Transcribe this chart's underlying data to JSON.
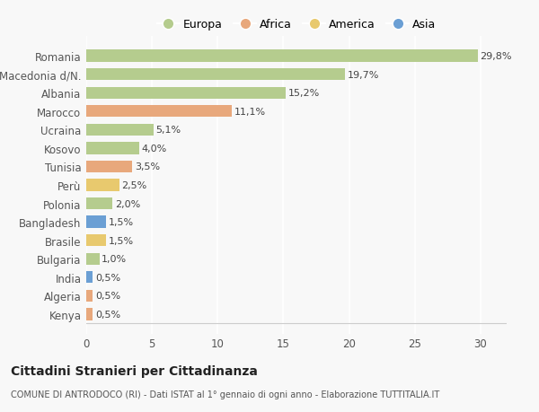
{
  "categories": [
    "Kenya",
    "Algeria",
    "India",
    "Bulgaria",
    "Brasile",
    "Bangladesh",
    "Polonia",
    "Perù",
    "Tunisia",
    "Kosovo",
    "Ucraina",
    "Marocco",
    "Albania",
    "Macedonia d/N.",
    "Romania"
  ],
  "values": [
    0.5,
    0.5,
    0.5,
    1.0,
    1.5,
    1.5,
    2.0,
    2.5,
    3.5,
    4.0,
    5.1,
    11.1,
    15.2,
    19.7,
    29.8
  ],
  "labels": [
    "0,5%",
    "0,5%",
    "0,5%",
    "1,0%",
    "1,5%",
    "1,5%",
    "2,0%",
    "2,5%",
    "3,5%",
    "4,0%",
    "5,1%",
    "11,1%",
    "15,2%",
    "19,7%",
    "29,8%"
  ],
  "colors": [
    "#e8a87c",
    "#e8a87c",
    "#6b9fd4",
    "#b5cc8e",
    "#e8c96e",
    "#6b9fd4",
    "#b5cc8e",
    "#e8c96e",
    "#e8a87c",
    "#b5cc8e",
    "#b5cc8e",
    "#e8a87c",
    "#b5cc8e",
    "#b5cc8e",
    "#b5cc8e"
  ],
  "legend_labels": [
    "Europa",
    "Africa",
    "America",
    "Asia"
  ],
  "legend_colors": [
    "#b5cc8e",
    "#e8a87c",
    "#e8c96e",
    "#6b9fd4"
  ],
  "title": "Cittadini Stranieri per Cittadinanza",
  "subtitle": "COMUNE DI ANTRODOCO (RI) - Dati ISTAT al 1° gennaio di ogni anno - Elaborazione TUTTITALIA.IT",
  "xlim": [
    0,
    32
  ],
  "xticks": [
    0,
    5,
    10,
    15,
    20,
    25,
    30
  ],
  "bg_color": "#f8f8f8",
  "bar_height": 0.65,
  "label_fontsize": 8.0,
  "ytick_fontsize": 8.5,
  "xtick_fontsize": 8.5
}
